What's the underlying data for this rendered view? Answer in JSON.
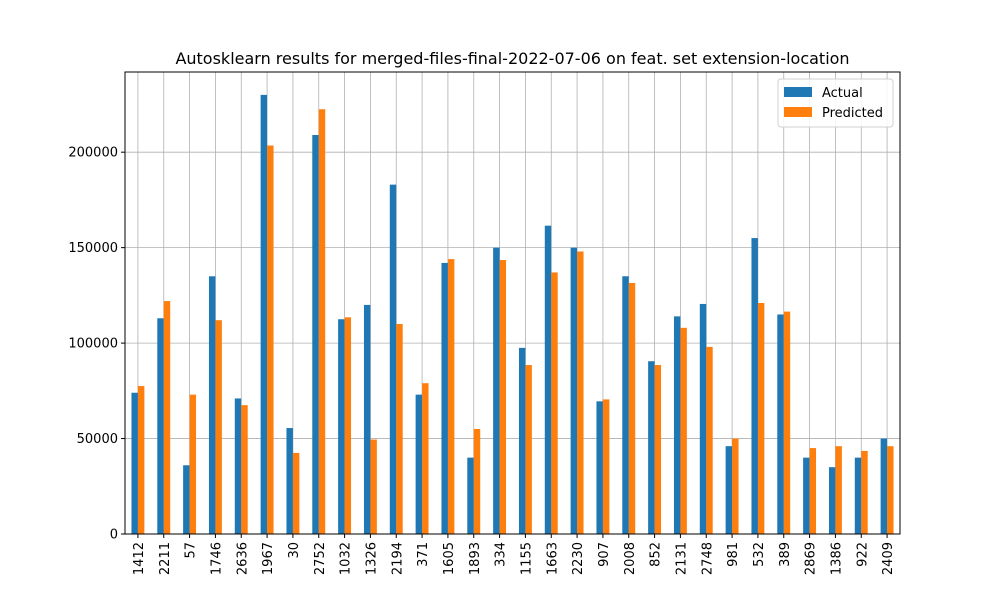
{
  "chart_data": {
    "type": "bar",
    "title": "Autosklearn results for merged-files-final-2022-07-06 on feat. set extension-location",
    "xlabel": "",
    "ylabel": "",
    "ylim": [
      0,
      242000
    ],
    "yticks": [
      0,
      50000,
      100000,
      150000,
      200000
    ],
    "grid": true,
    "legend_position": "top-right",
    "categories": [
      "1412",
      "2211",
      "57",
      "1746",
      "2636",
      "1967",
      "30",
      "2752",
      "1032",
      "1326",
      "2194",
      "371",
      "1605",
      "1893",
      "334",
      "1155",
      "1663",
      "2230",
      "907",
      "2008",
      "852",
      "2131",
      "2748",
      "981",
      "532",
      "389",
      "2869",
      "1386",
      "922",
      "2409"
    ],
    "series": [
      {
        "name": "Actual",
        "color": "#1f77b4",
        "values": [
          74000,
          113000,
          36000,
          135000,
          71000,
          230000,
          55500,
          209000,
          112500,
          120000,
          183000,
          73000,
          142000,
          40000,
          150000,
          97500,
          161500,
          150000,
          69500,
          135000,
          90500,
          114000,
          120500,
          46000,
          155000,
          115000,
          40000,
          35000,
          40000,
          50000
        ]
      },
      {
        "name": "Predicted",
        "color": "#ff7f0e",
        "values": [
          77500,
          122000,
          73000,
          112000,
          67500,
          203500,
          42500,
          222500,
          113500,
          49500,
          110000,
          79000,
          144000,
          55000,
          143500,
          88500,
          137000,
          148000,
          70500,
          131500,
          88500,
          108000,
          98000,
          50000,
          121000,
          116500,
          45000,
          46000,
          43500,
          46000
        ]
      }
    ]
  }
}
